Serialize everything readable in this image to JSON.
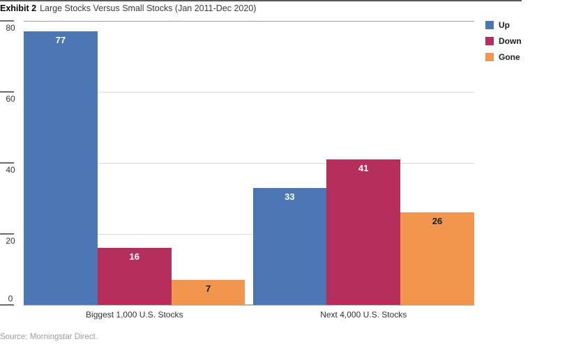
{
  "header": {
    "exhibit_label": "Exhibit 2",
    "title": "Large Stocks Versus Small Stocks (Jan 2011-Dec 2020)"
  },
  "source": "Source: Morningstar Direct.",
  "chart_data": {
    "type": "bar",
    "title": "Large Stocks Versus Small Stocks (Jan 2011-Dec 2020)",
    "categories": [
      "Biggest 1,000 U.S. Stocks",
      "Next 4,000 U.S. Stocks"
    ],
    "series": [
      {
        "name": "Up",
        "color": "#4c77b2",
        "label_color": "#ffffff",
        "values": [
          77,
          33
        ]
      },
      {
        "name": "Down",
        "color": "#b42f5c",
        "label_color": "#ffffff",
        "values": [
          16,
          41
        ]
      },
      {
        "name": "Gone",
        "color": "#f0964f",
        "label_color": "#1a1a1a",
        "values": [
          7,
          26
        ]
      }
    ],
    "xlabel": "",
    "ylabel": "",
    "ylim": [
      0,
      80
    ],
    "yticks": [
      0,
      20,
      40,
      60,
      80
    ],
    "grid": true,
    "value_labels": true,
    "legend_position": "top-right"
  },
  "colors": {
    "up_blue": "#4c77b2",
    "down_red": "#b42f5c",
    "gone_orange": "#f0964f",
    "gridline": "#dcdcdc",
    "axis_line": "#b3b3b3",
    "tick_mark": "#6b6b6b",
    "source_text": "#9e9e9e"
  }
}
